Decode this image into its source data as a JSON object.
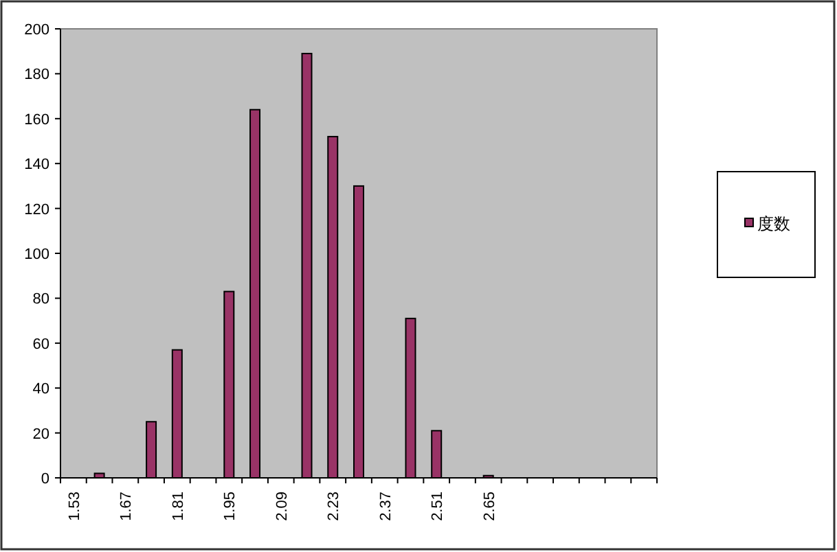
{
  "chart_data": {
    "type": "bar",
    "categories": [
      "1.53",
      null,
      "1.67",
      null,
      "1.81",
      null,
      "1.95",
      null,
      "2.09",
      null,
      "2.23",
      null,
      "2.37",
      null,
      "2.51",
      null,
      "2.65",
      null,
      null,
      null,
      null,
      null,
      null
    ],
    "series": [
      {
        "name": "度数",
        "color": "#993366",
        "values": [
          0,
          2,
          0,
          25,
          57,
          0,
          83,
          164,
          0,
          189,
          152,
          130,
          0,
          71,
          21,
          0,
          1,
          0,
          0,
          0,
          0,
          0,
          0
        ]
      }
    ],
    "ylim": [
      0,
      200
    ],
    "yticks": [
      0,
      20,
      40,
      60,
      80,
      100,
      120,
      140,
      160,
      180,
      200
    ],
    "grid": false,
    "legend": "right"
  }
}
